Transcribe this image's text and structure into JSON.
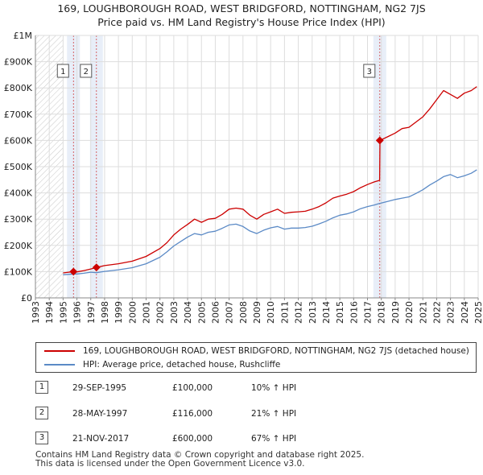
{
  "title": {
    "line1": "169, LOUGHBOROUGH ROAD, WEST BRIDGFORD, NOTTINGHAM, NG2 7JS",
    "line2": "Price paid vs. HM Land Registry's House Price Index (HPI)"
  },
  "chart_data": {
    "type": "line",
    "title": "169, LOUGHBOROUGH ROAD, WEST BRIDGFORD, NOTTINGHAM, NG2 7JS — Price paid vs. HM Land Registry's House Price Index (HPI)",
    "xlabel": "",
    "ylabel": "",
    "xlim": [
      1993,
      2025
    ],
    "ylim": [
      0,
      1000000
    ],
    "y_ticks": [
      {
        "value": 0,
        "label": "£0"
      },
      {
        "value": 100000,
        "label": "£100K"
      },
      {
        "value": 200000,
        "label": "£200K"
      },
      {
        "value": 300000,
        "label": "£300K"
      },
      {
        "value": 400000,
        "label": "£400K"
      },
      {
        "value": 500000,
        "label": "£500K"
      },
      {
        "value": 600000,
        "label": "£600K"
      },
      {
        "value": 700000,
        "label": "£700K"
      },
      {
        "value": 800000,
        "label": "£800K"
      },
      {
        "value": 900000,
        "label": "£900K"
      },
      {
        "value": 1000000,
        "label": "£1M"
      }
    ],
    "x_ticks": [
      "1993",
      "1994",
      "1995",
      "1996",
      "1997",
      "1998",
      "1999",
      "2000",
      "2001",
      "2002",
      "2003",
      "2004",
      "2005",
      "2006",
      "2007",
      "2008",
      "2009",
      "2010",
      "2011",
      "2012",
      "2013",
      "2014",
      "2015",
      "2016",
      "2017",
      "2018",
      "2019",
      "2020",
      "2021",
      "2022",
      "2023",
      "2024",
      "2025"
    ],
    "grid": true,
    "hatched_ranges": [
      [
        1993,
        1995
      ],
      [
        2025,
        2025
      ]
    ],
    "series": [
      {
        "name": "169, LOUGHBOROUGH ROAD, WEST BRIDGFORD, NOTTINGHAM, NG2 7JS (detached house)",
        "color": "#cc0000",
        "x": [
          1995.0,
          1995.75,
          1996.0,
          1996.5,
          1997.0,
          1997.41,
          1998.0,
          1999.0,
          2000.0,
          2001.0,
          2002.0,
          2002.5,
          2003.0,
          2003.5,
          2004.0,
          2004.5,
          2005.0,
          2005.5,
          2006.0,
          2006.5,
          2007.0,
          2007.5,
          2008.0,
          2008.5,
          2009.0,
          2009.5,
          2010.0,
          2010.5,
          2011.0,
          2011.5,
          2012.0,
          2012.5,
          2013.0,
          2013.5,
          2014.0,
          2014.5,
          2015.0,
          2015.5,
          2016.0,
          2016.5,
          2017.0,
          2017.5,
          2017.88,
          2017.9,
          2018.5,
          2019.0,
          2019.5,
          2020.0,
          2020.5,
          2021.0,
          2021.5,
          2022.0,
          2022.5,
          2023.0,
          2023.5,
          2024.0,
          2024.5,
          2024.9
        ],
        "values": [
          95000,
          100000,
          99000,
          104000,
          110000,
          116000,
          123000,
          130000,
          140000,
          158000,
          188000,
          210000,
          240000,
          262000,
          280000,
          300000,
          288000,
          300000,
          303000,
          318000,
          338000,
          342000,
          338000,
          315000,
          300000,
          318000,
          328000,
          338000,
          322000,
          326000,
          328000,
          330000,
          338000,
          348000,
          362000,
          380000,
          388000,
          395000,
          405000,
          420000,
          432000,
          442000,
          448000,
          600000,
          615000,
          628000,
          645000,
          650000,
          670000,
          690000,
          720000,
          755000,
          790000,
          775000,
          760000,
          780000,
          790000,
          805000
        ]
      },
      {
        "name": "HPI: Average price, detached house, Rushcliffe",
        "color": "#5b8ac6",
        "x": [
          1995.0,
          1995.75,
          1996.0,
          1996.5,
          1997.0,
          1997.41,
          1998.0,
          1999.0,
          2000.0,
          2001.0,
          2002.0,
          2002.5,
          2003.0,
          2003.5,
          2004.0,
          2004.5,
          2005.0,
          2005.5,
          2006.0,
          2006.5,
          2007.0,
          2007.5,
          2008.0,
          2008.5,
          2009.0,
          2009.5,
          2010.0,
          2010.5,
          2011.0,
          2011.5,
          2012.0,
          2012.5,
          2013.0,
          2013.5,
          2014.0,
          2014.5,
          2015.0,
          2015.5,
          2016.0,
          2016.5,
          2017.0,
          2017.5,
          2017.88,
          2017.9,
          2018.5,
          2019.0,
          2019.5,
          2020.0,
          2020.5,
          2021.0,
          2021.5,
          2022.0,
          2022.5,
          2023.0,
          2023.5,
          2024.0,
          2024.5,
          2024.9
        ],
        "values": [
          88000,
          91000,
          91000,
          94000,
          98000,
          96000,
          101000,
          107000,
          115000,
          130000,
          155000,
          175000,
          198000,
          215000,
          232000,
          245000,
          240000,
          250000,
          254000,
          265000,
          278000,
          281000,
          272000,
          255000,
          245000,
          258000,
          267000,
          272000,
          262000,
          266000,
          266000,
          268000,
          273000,
          282000,
          292000,
          305000,
          315000,
          320000,
          328000,
          340000,
          348000,
          354000,
          360000,
          360000,
          368000,
          375000,
          380000,
          385000,
          398000,
          412000,
          430000,
          445000,
          462000,
          470000,
          458000,
          465000,
          475000,
          488000
        ]
      }
    ],
    "sale_markers": [
      {
        "label": "1",
        "x": 1995.75,
        "value": 100000
      },
      {
        "label": "2",
        "x": 1997.41,
        "value": 116000
      },
      {
        "label": "3",
        "x": 2017.89,
        "value": 600000
      }
    ]
  },
  "legend": {
    "items": [
      {
        "label": "169, LOUGHBOROUGH ROAD, WEST BRIDGFORD, NOTTINGHAM, NG2 7JS (detached house)",
        "color": "#cc0000"
      },
      {
        "label": "HPI: Average price, detached house, Rushcliffe",
        "color": "#5b8ac6"
      }
    ]
  },
  "sales": [
    {
      "num": "1",
      "date": "29-SEP-1995",
      "price": "£100,000",
      "hpi": "10% ↑ HPI"
    },
    {
      "num": "2",
      "date": "28-MAY-1997",
      "price": "£116,000",
      "hpi": "21% ↑ HPI"
    },
    {
      "num": "3",
      "date": "21-NOV-2017",
      "price": "£600,000",
      "hpi": "67% ↑ HPI"
    }
  ],
  "footer": {
    "line1": "Contains HM Land Registry data © Crown copyright and database right 2025.",
    "line2": "This data is licensed under the Open Government Licence v3.0."
  }
}
